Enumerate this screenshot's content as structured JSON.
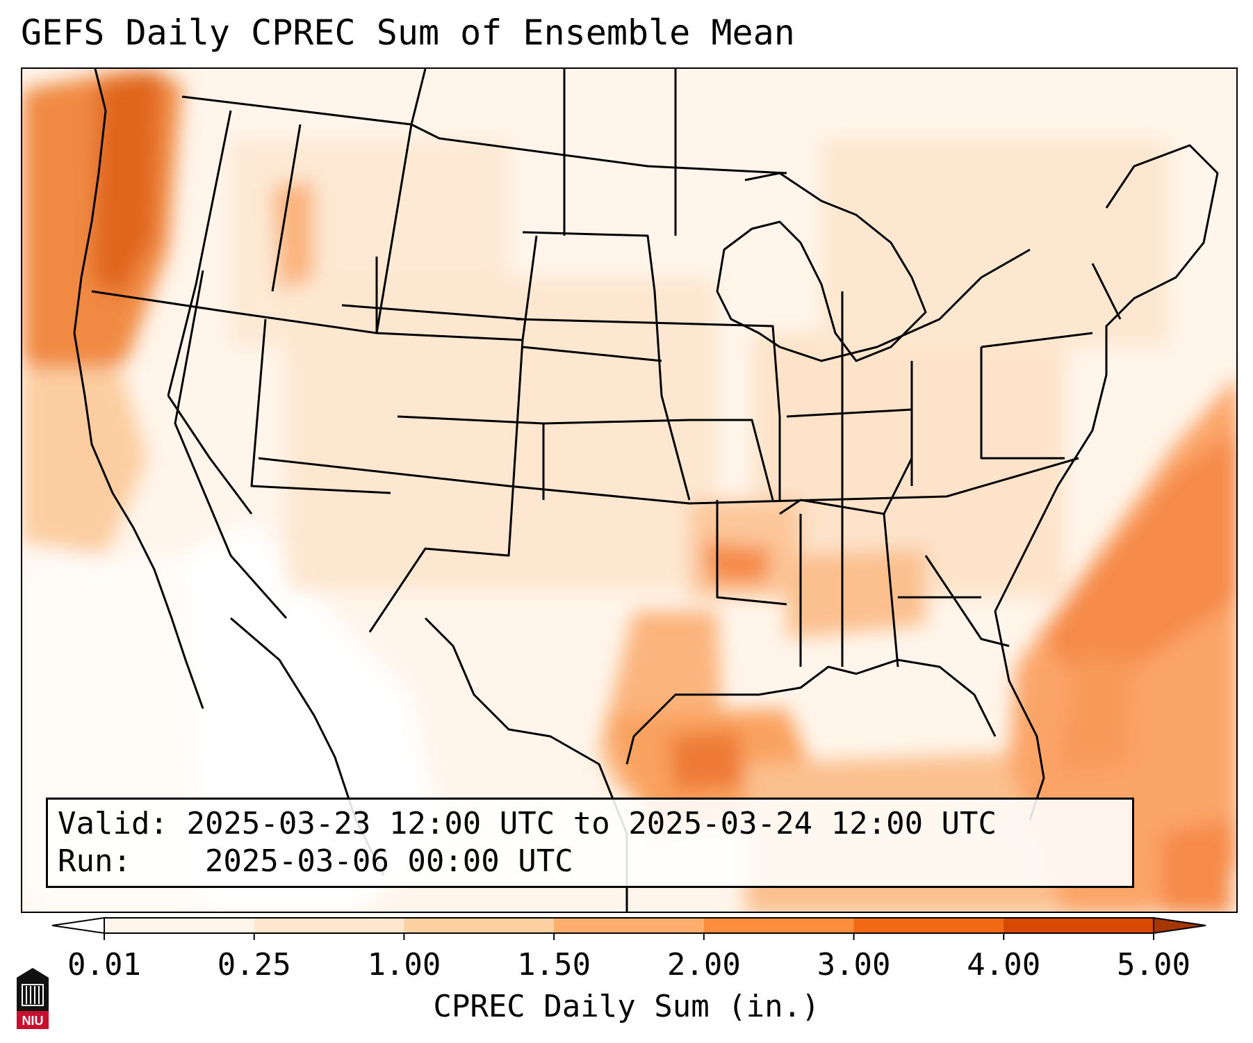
{
  "title": "GEFS Daily CPREC Sum of Ensemble Mean",
  "info": {
    "valid_label": "Valid:",
    "valid_value": "2025-03-23 12:00 UTC to 2025-03-24 12:00 UTC",
    "run_label": "Run:",
    "run_value": "2025-03-06 00:00 UTC"
  },
  "colorbar": {
    "label": "CPREC Daily Sum (in.)",
    "ticks": [
      "0.01",
      "0.25",
      "1.00",
      "1.50",
      "2.00",
      "3.00",
      "4.00",
      "5.00"
    ],
    "colors": [
      "#fff5eb",
      "#fee6ce",
      "#fdd0a2",
      "#fdae6b",
      "#fd8d3c",
      "#f16913",
      "#d94801",
      "#a63603"
    ]
  },
  "logo": {
    "text": "NIU",
    "color": "#c8102e"
  }
}
